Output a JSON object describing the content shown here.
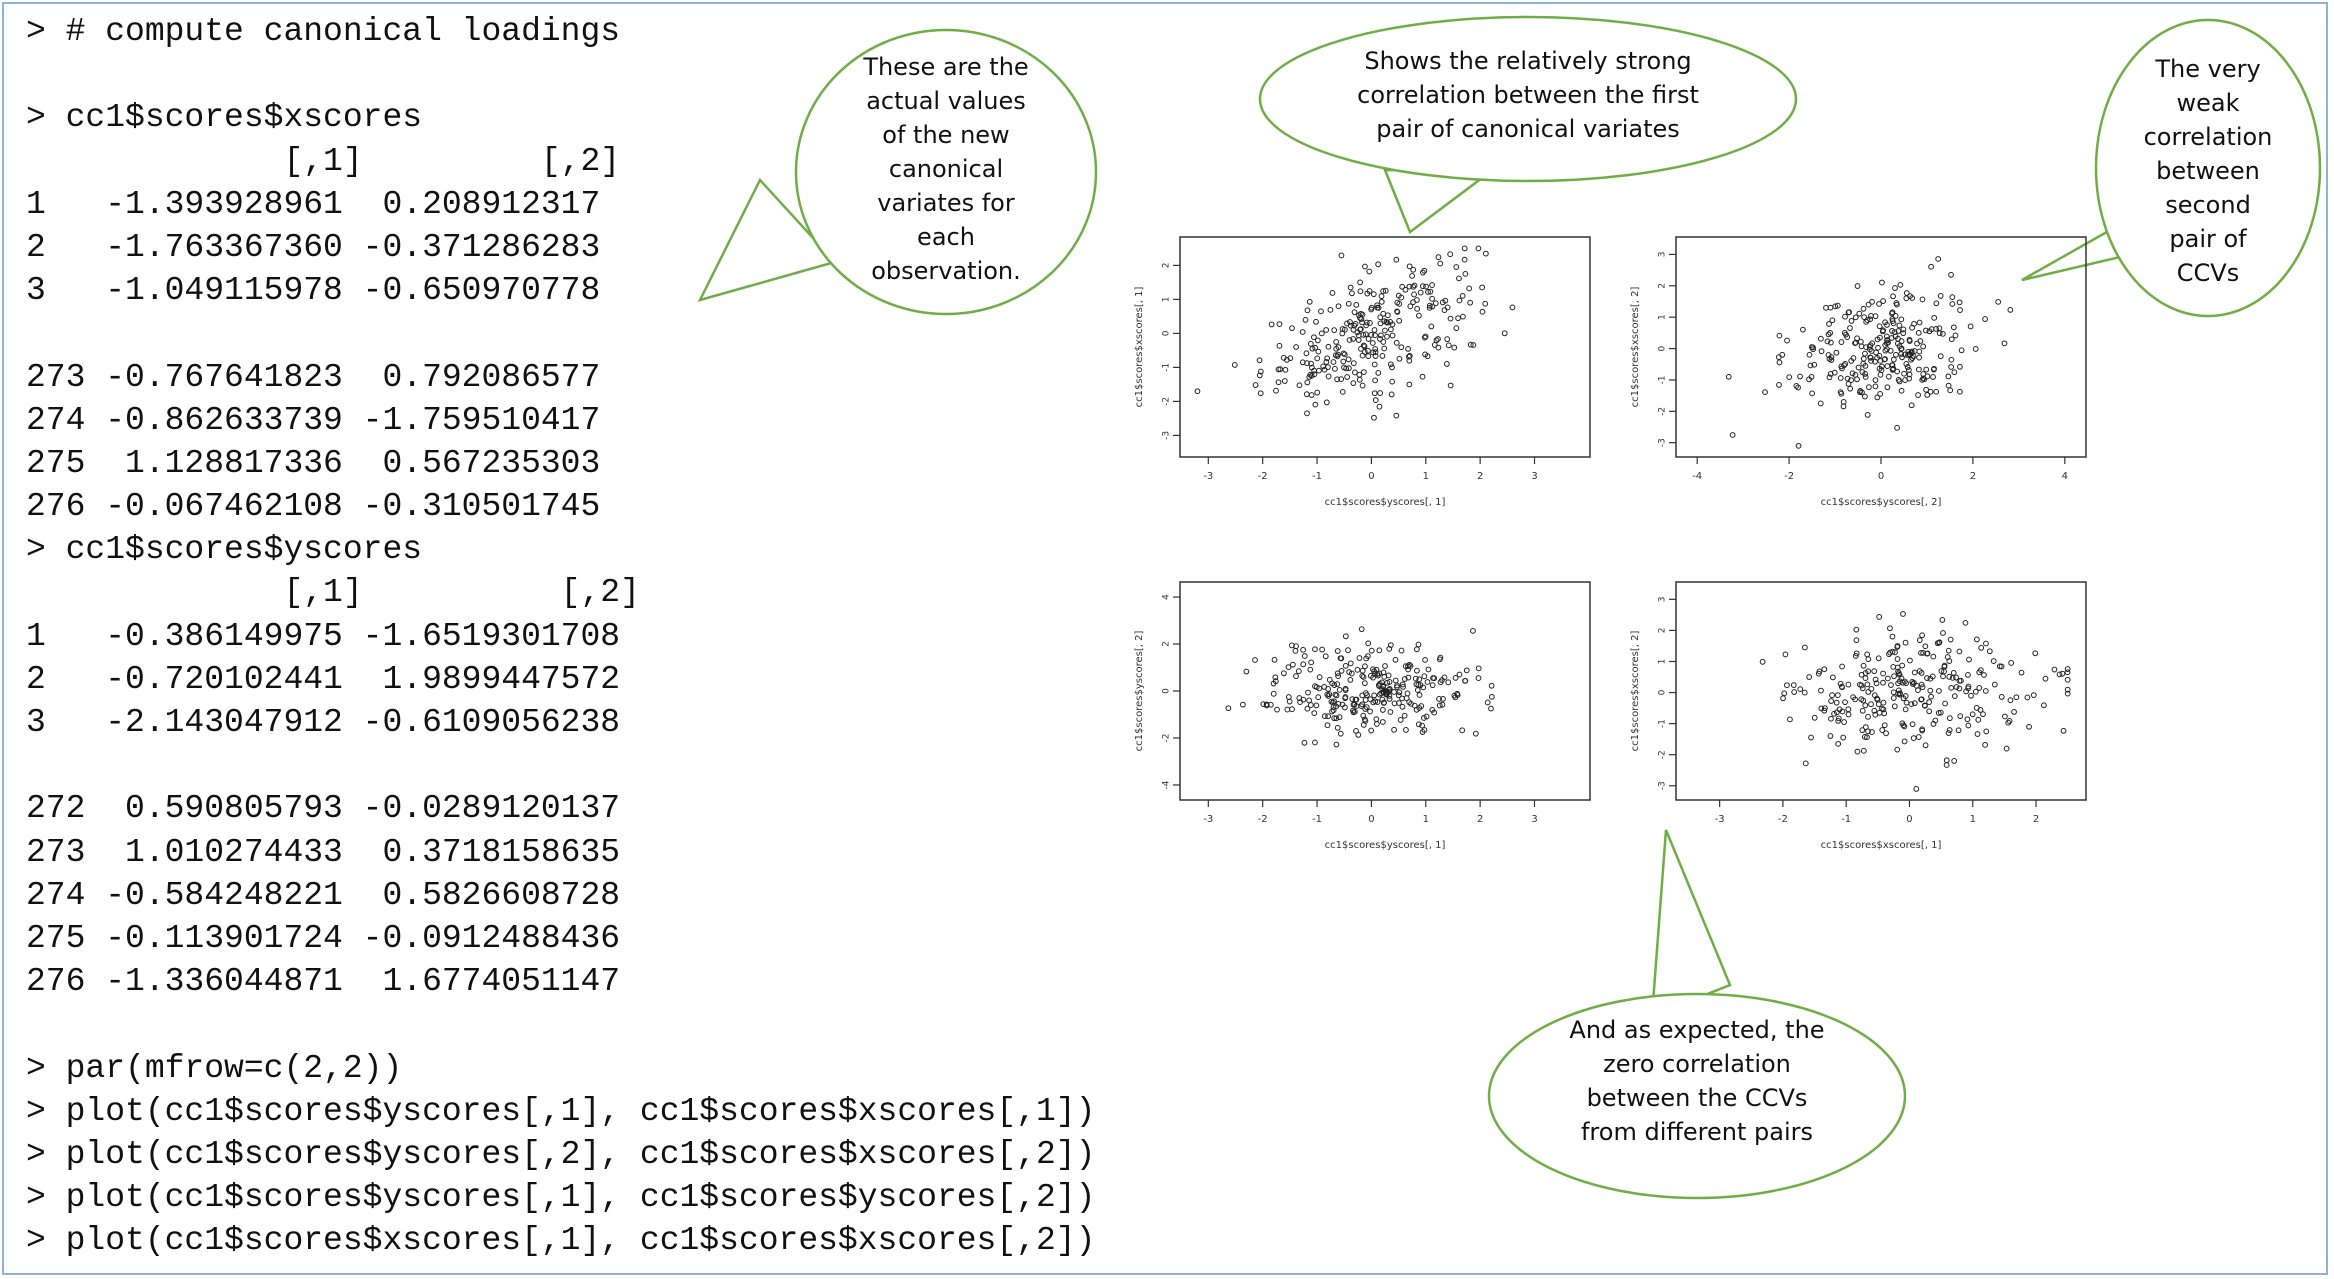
{
  "console_lines": [
    "> # compute canonical loadings",
    "",
    "> cc1$scores$xscores",
    "             [,1]         [,2]",
    "1   -1.393928961  0.208912317",
    "2   -1.763367360 -0.371286283",
    "3   -1.049115978 -0.650970778",
    "",
    "273 -0.767641823  0.792086577",
    "274 -0.862633739 -1.759510417",
    "275  1.128817336  0.567235303",
    "276 -0.067462108 -0.310501745",
    "> cc1$scores$yscores",
    "             [,1]          [,2]",
    "1   -0.386149975 -1.6519301708",
    "2   -0.720102441  1.9899447572",
    "3   -2.143047912 -0.6109056238",
    "",
    "272  0.590805793 -0.0289120137",
    "273  1.010274433  0.3718158635",
    "274 -0.584248221  0.5826608728",
    "275 -0.113901724 -0.0912488436",
    "276 -1.336044871  1.6774051147",
    "",
    "> par(mfrow=c(2,2))",
    "> plot(cc1$scores$yscores[,1], cc1$scores$xscores[,1])",
    "> plot(cc1$scores$yscores[,2], cc1$scores$xscores[,2])",
    "> plot(cc1$scores$yscores[,1], cc1$scores$yscores[,2])",
    "> plot(cc1$scores$xscores[,1], cc1$scores$xscores[,2])"
  ],
  "callouts": {
    "actual_values": "These are the\nactual values\nof the new\ncanonical\nvariates for\neach\nobservation.",
    "strong_corr": "Shows the relatively strong\ncorrelation between the first\npair of canonical variates",
    "weak_corr": "The very\nweak\ncorrelation\nbetween\nsecond\npair of\nCCVs",
    "zero_corr": "And as expected, the\nzero correlation\nbetween the CCVs\nfrom different pairs"
  },
  "colors": {
    "bubble_fill": "#ffffff",
    "bubble_stroke": "#70ad47",
    "frame": "#8fb3d6",
    "points": "#222222"
  },
  "chart_data": [
    {
      "type": "scatter",
      "xlabel": "cc1$scores$yscores[, 1]",
      "ylabel": "cc1$scores$xscores[, 1]",
      "xticks": [
        -3,
        -2,
        -1,
        0,
        1,
        2,
        3
      ],
      "yticks": [
        -3,
        -2,
        -1,
        0,
        1,
        2
      ],
      "xlim": [
        -3.3,
        3.8
      ],
      "ylim": [
        -3.4,
        2.6
      ],
      "corr": 0.55,
      "n": 276
    },
    {
      "type": "scatter",
      "xlabel": "cc1$scores$yscores[, 2]",
      "ylabel": "cc1$scores$xscores[, 2]",
      "xticks": [
        -4,
        -2,
        0,
        2,
        4
      ],
      "yticks": [
        -3,
        -2,
        -1,
        0,
        1,
        2,
        3
      ],
      "xlim": [
        -4.2,
        4.2
      ],
      "ylim": [
        -3.2,
        3.3
      ],
      "corr": 0.15,
      "n": 276
    },
    {
      "type": "scatter",
      "xlabel": "cc1$scores$yscores[, 1]",
      "ylabel": "cc1$scores$yscores[, 2]",
      "xticks": [
        -3,
        -2,
        -1,
        0,
        1,
        2,
        3
      ],
      "yticks": [
        -4,
        -2,
        0,
        2,
        4
      ],
      "xlim": [
        -3.3,
        3.8
      ],
      "ylim": [
        -4.3,
        4.3
      ],
      "corr": 0.0,
      "n": 276
    },
    {
      "type": "scatter",
      "xlabel": "cc1$scores$xscores[, 1]",
      "ylabel": "cc1$scores$xscores[, 2]",
      "xticks": [
        -3,
        -2,
        -1,
        0,
        1,
        2
      ],
      "yticks": [
        -3,
        -2,
        -1,
        0,
        1,
        2,
        3
      ],
      "xlim": [
        -3.5,
        2.6
      ],
      "ylim": [
        -3.2,
        3.3
      ],
      "corr": 0.0,
      "n": 276
    }
  ]
}
